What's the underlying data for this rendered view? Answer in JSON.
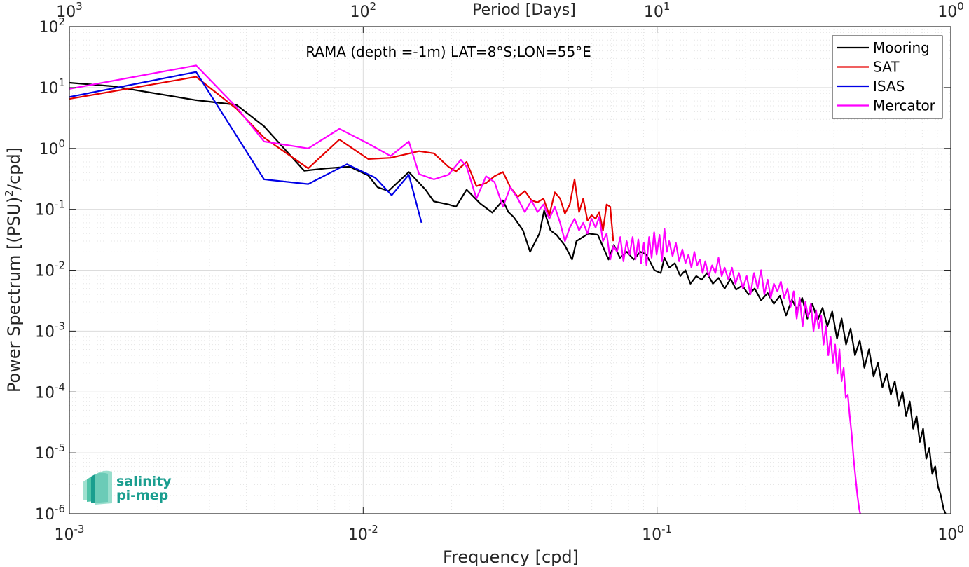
{
  "chart_data": {
    "type": "line",
    "title": "",
    "annotation": "RAMA (depth =-1m) LAT=8°S;LON=55°E",
    "xlabel": "Frequency [cpd]",
    "ylabel_main": "Power Spectrum [(PSU)",
    "ylabel_sup": "2",
    "ylabel_tail": "/cpd]",
    "top_xlabel": "Period [Days]",
    "xscale": "log",
    "yscale": "log",
    "xlim": [
      0.001,
      1
    ],
    "ylim": [
      1e-06,
      100
    ],
    "grid": true,
    "legend_position": "top-right",
    "x_ticks": [
      {
        "value": 0.001,
        "base": "10",
        "exp": "-3"
      },
      {
        "value": 0.01,
        "base": "10",
        "exp": "-2"
      },
      {
        "value": 0.1,
        "base": "10",
        "exp": "-1"
      },
      {
        "value": 1,
        "base": "10",
        "exp": "0"
      }
    ],
    "top_ticks": [
      {
        "value": 0.001,
        "base": "10",
        "exp": "3"
      },
      {
        "value": 0.01,
        "base": "10",
        "exp": "2"
      },
      {
        "value": 0.1,
        "base": "10",
        "exp": "1"
      },
      {
        "value": 1,
        "base": "10",
        "exp": "0"
      }
    ],
    "y_ticks": [
      {
        "value": 100,
        "base": "10",
        "exp": "2"
      },
      {
        "value": 10,
        "base": "10",
        "exp": "1"
      },
      {
        "value": 1,
        "base": "10",
        "exp": "0"
      },
      {
        "value": 0.1,
        "base": "10",
        "exp": "-1"
      },
      {
        "value": 0.01,
        "base": "10",
        "exp": "-2"
      },
      {
        "value": 0.001,
        "base": "10",
        "exp": "-3"
      },
      {
        "value": 0.0001,
        "base": "10",
        "exp": "-4"
      },
      {
        "value": 1e-05,
        "base": "10",
        "exp": "-5"
      },
      {
        "value": 1e-06,
        "base": "10",
        "exp": "-6"
      }
    ],
    "series": [
      {
        "name": "Mooring",
        "color": "#000000",
        "points": [
          [
            0.001,
            12
          ],
          [
            0.0014,
            10.5
          ],
          [
            0.0027,
            6.2
          ],
          [
            0.0037,
            5.2
          ],
          [
            0.0046,
            2.3
          ],
          [
            0.0063,
            0.43
          ],
          [
            0.0075,
            0.47
          ],
          [
            0.009,
            0.5
          ],
          [
            0.0104,
            0.36
          ],
          [
            0.0112,
            0.23
          ],
          [
            0.0122,
            0.2
          ],
          [
            0.0143,
            0.41
          ],
          [
            0.0163,
            0.21
          ],
          [
            0.0174,
            0.135
          ],
          [
            0.0195,
            0.12
          ],
          [
            0.0207,
            0.11
          ],
          [
            0.0225,
            0.21
          ],
          [
            0.025,
            0.125
          ],
          [
            0.0275,
            0.088
          ],
          [
            0.0299,
            0.14
          ],
          [
            0.0312,
            0.09
          ],
          [
            0.0325,
            0.075
          ],
          [
            0.035,
            0.045
          ],
          [
            0.037,
            0.02
          ],
          [
            0.0398,
            0.04
          ],
          [
            0.0413,
            0.095
          ],
          [
            0.0434,
            0.045
          ],
          [
            0.0455,
            0.038
          ],
          [
            0.0487,
            0.025
          ],
          [
            0.0514,
            0.015
          ],
          [
            0.0532,
            0.03
          ],
          [
            0.0585,
            0.04
          ],
          [
            0.0629,
            0.038
          ],
          [
            0.0684,
            0.015
          ],
          [
            0.0713,
            0.026
          ],
          [
            0.0748,
            0.016
          ],
          [
            0.079,
            0.02
          ],
          [
            0.0833,
            0.015
          ],
          [
            0.0878,
            0.02
          ],
          [
            0.092,
            0.018
          ],
          [
            0.098,
            0.01
          ],
          [
            0.103,
            0.009
          ],
          [
            0.106,
            0.016
          ],
          [
            0.11,
            0.011
          ],
          [
            0.115,
            0.013
          ],
          [
            0.12,
            0.008
          ],
          [
            0.125,
            0.01
          ],
          [
            0.13,
            0.006
          ],
          [
            0.136,
            0.008
          ],
          [
            0.142,
            0.007
          ],
          [
            0.148,
            0.009
          ],
          [
            0.155,
            0.006
          ],
          [
            0.162,
            0.0075
          ],
          [
            0.17,
            0.005
          ],
          [
            0.178,
            0.0072
          ],
          [
            0.186,
            0.0048
          ],
          [
            0.195,
            0.0056
          ],
          [
            0.205,
            0.004
          ],
          [
            0.215,
            0.005
          ],
          [
            0.226,
            0.0032
          ],
          [
            0.238,
            0.0042
          ],
          [
            0.25,
            0.0028
          ],
          [
            0.262,
            0.0038
          ],
          [
            0.275,
            0.0018
          ],
          [
            0.288,
            0.0033
          ],
          [
            0.3,
            0.0022
          ],
          [
            0.312,
            0.0035
          ],
          [
            0.325,
            0.0016
          ],
          [
            0.338,
            0.0028
          ],
          [
            0.352,
            0.0015
          ],
          [
            0.366,
            0.0024
          ],
          [
            0.38,
            0.0012
          ],
          [
            0.395,
            0.0021
          ],
          [
            0.41,
            0.00075
          ],
          [
            0.425,
            0.0016
          ],
          [
            0.44,
            0.0006
          ],
          [
            0.456,
            0.0011
          ],
          [
            0.472,
            0.0004
          ],
          [
            0.49,
            0.0007
          ],
          [
            0.508,
            0.00025
          ],
          [
            0.527,
            0.0005
          ],
          [
            0.546,
            0.00018
          ],
          [
            0.565,
            0.0003
          ],
          [
            0.585,
            0.00012
          ],
          [
            0.605,
            0.0002
          ],
          [
            0.625,
            9e-05
          ],
          [
            0.645,
            0.00015
          ],
          [
            0.665,
            6e-05
          ],
          [
            0.685,
            0.0001
          ],
          [
            0.705,
            4e-05
          ],
          [
            0.725,
            7e-05
          ],
          [
            0.745,
            2.5e-05
          ],
          [
            0.765,
            4e-05
          ],
          [
            0.785,
            1.5e-05
          ],
          [
            0.805,
            2.5e-05
          ],
          [
            0.825,
            8e-06
          ],
          [
            0.845,
            1.2e-05
          ],
          [
            0.865,
            4.5e-06
          ],
          [
            0.885,
            6e-06
          ],
          [
            0.905,
            2.8e-06
          ],
          [
            0.925,
            2e-06
          ],
          [
            0.945,
            1.2e-06
          ],
          [
            0.96,
            1e-06
          ]
        ]
      },
      {
        "name": "SAT",
        "color": "#e60000",
        "points": [
          [
            0.001,
            6.5
          ],
          [
            0.0027,
            15
          ],
          [
            0.0037,
            4.5
          ],
          [
            0.0046,
            1.5
          ],
          [
            0.0065,
            0.47
          ],
          [
            0.0083,
            1.4
          ],
          [
            0.0104,
            0.67
          ],
          [
            0.0124,
            0.7
          ],
          [
            0.0155,
            0.9
          ],
          [
            0.0174,
            0.83
          ],
          [
            0.0195,
            0.5
          ],
          [
            0.0207,
            0.42
          ],
          [
            0.0225,
            0.6
          ],
          [
            0.0243,
            0.24
          ],
          [
            0.0262,
            0.27
          ],
          [
            0.028,
            0.35
          ],
          [
            0.0299,
            0.41
          ],
          [
            0.0317,
            0.23
          ],
          [
            0.0336,
            0.16
          ],
          [
            0.0355,
            0.2
          ],
          [
            0.0374,
            0.14
          ],
          [
            0.0392,
            0.13
          ],
          [
            0.0411,
            0.15
          ],
          [
            0.043,
            0.08
          ],
          [
            0.0449,
            0.19
          ],
          [
            0.0468,
            0.15
          ],
          [
            0.0486,
            0.085
          ],
          [
            0.0505,
            0.12
          ],
          [
            0.0524,
            0.31
          ],
          [
            0.0543,
            0.09
          ],
          [
            0.0561,
            0.15
          ],
          [
            0.058,
            0.065
          ],
          [
            0.0599,
            0.08
          ],
          [
            0.0618,
            0.07
          ],
          [
            0.0636,
            0.09
          ],
          [
            0.0655,
            0.045
          ],
          [
            0.0674,
            0.12
          ],
          [
            0.0693,
            0.11
          ],
          [
            0.071,
            0.03
          ]
        ]
      },
      {
        "name": "ISAS",
        "color": "#0000e6",
        "points": [
          [
            0.001,
            7
          ],
          [
            0.0027,
            18
          ],
          [
            0.0046,
            0.31
          ],
          [
            0.0065,
            0.26
          ],
          [
            0.0088,
            0.55
          ],
          [
            0.011,
            0.33
          ],
          [
            0.0125,
            0.17
          ],
          [
            0.0143,
            0.37
          ],
          [
            0.0158,
            0.06
          ]
        ]
      },
      {
        "name": "Mercator",
        "color": "#ff00ff",
        "points": [
          [
            0.001,
            9.5
          ],
          [
            0.0027,
            23
          ],
          [
            0.0037,
            4.8
          ],
          [
            0.0046,
            1.3
          ],
          [
            0.0065,
            1.0
          ],
          [
            0.0083,
            2.1
          ],
          [
            0.0104,
            1.2
          ],
          [
            0.0124,
            0.75
          ],
          [
            0.0143,
            1.3
          ],
          [
            0.0155,
            0.38
          ],
          [
            0.0174,
            0.31
          ],
          [
            0.0195,
            0.37
          ],
          [
            0.0215,
            0.65
          ],
          [
            0.0225,
            0.5
          ],
          [
            0.0243,
            0.15
          ],
          [
            0.0262,
            0.35
          ],
          [
            0.028,
            0.28
          ],
          [
            0.0299,
            0.11
          ],
          [
            0.0317,
            0.23
          ],
          [
            0.0336,
            0.15
          ],
          [
            0.0355,
            0.09
          ],
          [
            0.0374,
            0.14
          ],
          [
            0.0392,
            0.09
          ],
          [
            0.0411,
            0.12
          ],
          [
            0.043,
            0.07
          ],
          [
            0.0449,
            0.11
          ],
          [
            0.0468,
            0.06
          ],
          [
            0.0486,
            0.03
          ],
          [
            0.0505,
            0.05
          ],
          [
            0.0524,
            0.07
          ],
          [
            0.0543,
            0.045
          ],
          [
            0.0561,
            0.06
          ],
          [
            0.058,
            0.04
          ],
          [
            0.0599,
            0.07
          ],
          [
            0.0618,
            0.05
          ],
          [
            0.0636,
            0.075
          ],
          [
            0.0655,
            0.03
          ],
          [
            0.0674,
            0.04
          ],
          [
            0.0693,
            0.015
          ],
          [
            0.0712,
            0.025
          ],
          [
            0.0731,
            0.02
          ],
          [
            0.075,
            0.035
          ],
          [
            0.0769,
            0.014
          ],
          [
            0.0788,
            0.03
          ],
          [
            0.0807,
            0.018
          ],
          [
            0.0826,
            0.035
          ],
          [
            0.0845,
            0.015
          ],
          [
            0.0864,
            0.032
          ],
          [
            0.0883,
            0.013
          ],
          [
            0.0902,
            0.028
          ],
          [
            0.0921,
            0.012
          ],
          [
            0.094,
            0.035
          ],
          [
            0.0959,
            0.016
          ],
          [
            0.0978,
            0.042
          ],
          [
            0.0997,
            0.018
          ],
          [
            0.102,
            0.038
          ],
          [
            0.104,
            0.014
          ],
          [
            0.106,
            0.048
          ],
          [
            0.108,
            0.02
          ],
          [
            0.11,
            0.03
          ],
          [
            0.113,
            0.017
          ],
          [
            0.116,
            0.028
          ],
          [
            0.119,
            0.014
          ],
          [
            0.122,
            0.022
          ],
          [
            0.125,
            0.013
          ],
          [
            0.128,
            0.018
          ],
          [
            0.131,
            0.011
          ],
          [
            0.134,
            0.02
          ],
          [
            0.137,
            0.012
          ],
          [
            0.14,
            0.015
          ],
          [
            0.143,
            0.009
          ],
          [
            0.146,
            0.014
          ],
          [
            0.15,
            0.008
          ],
          [
            0.154,
            0.012
          ],
          [
            0.158,
            0.009
          ],
          [
            0.162,
            0.016
          ],
          [
            0.166,
            0.008
          ],
          [
            0.17,
            0.011
          ],
          [
            0.175,
            0.007
          ],
          [
            0.18,
            0.011
          ],
          [
            0.185,
            0.006
          ],
          [
            0.19,
            0.009
          ],
          [
            0.196,
            0.005
          ],
          [
            0.202,
            0.008
          ],
          [
            0.208,
            0.004
          ],
          [
            0.214,
            0.009
          ],
          [
            0.22,
            0.005
          ],
          [
            0.226,
            0.01
          ],
          [
            0.232,
            0.004
          ],
          [
            0.238,
            0.007
          ],
          [
            0.244,
            0.0035
          ],
          [
            0.25,
            0.006
          ],
          [
            0.257,
            0.0045
          ],
          [
            0.264,
            0.0065
          ],
          [
            0.271,
            0.0035
          ],
          [
            0.278,
            0.005
          ],
          [
            0.285,
            0.0025
          ],
          [
            0.292,
            0.0045
          ],
          [
            0.299,
            0.0016
          ],
          [
            0.306,
            0.0035
          ],
          [
            0.313,
            0.0012
          ],
          [
            0.32,
            0.003
          ],
          [
            0.327,
            0.0017
          ],
          [
            0.334,
            0.0028
          ],
          [
            0.341,
            0.001
          ],
          [
            0.348,
            0.0022
          ],
          [
            0.355,
            0.0011
          ],
          [
            0.362,
            0.0018
          ],
          [
            0.369,
            0.0006
          ],
          [
            0.376,
            0.0012
          ],
          [
            0.383,
            0.0004
          ],
          [
            0.39,
            0.0008
          ],
          [
            0.397,
            0.0003
          ],
          [
            0.404,
            0.0006
          ],
          [
            0.411,
            0.0002
          ],
          [
            0.418,
            0.0005
          ],
          [
            0.425,
            0.00015
          ],
          [
            0.432,
            0.00025
          ],
          [
            0.439,
            8e-05
          ],
          [
            0.446,
            9e-05
          ],
          [
            0.453,
            4e-05
          ],
          [
            0.46,
            2e-05
          ],
          [
            0.467,
            8e-06
          ],
          [
            0.474,
            4e-06
          ],
          [
            0.481,
            2e-06
          ],
          [
            0.488,
            1.2e-06
          ],
          [
            0.492,
            1e-06
          ]
        ]
      }
    ]
  },
  "logo": {
    "line1": "salinity",
    "line2": "pi-mep"
  }
}
